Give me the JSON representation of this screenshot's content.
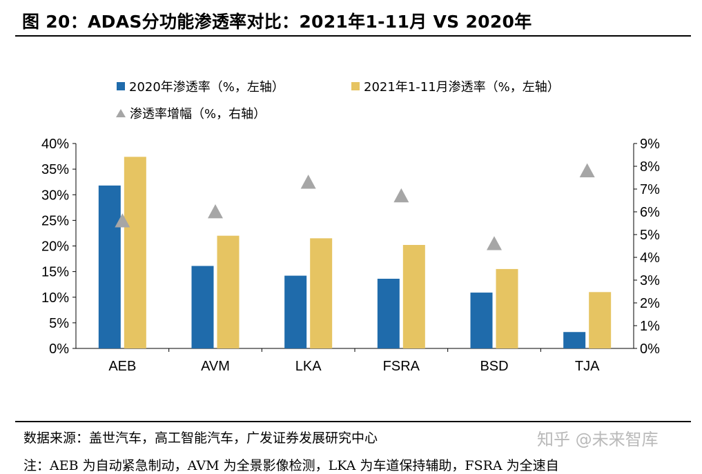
{
  "title": "图 20：ADAS分功能渗透率对比：2021年1-11月 VS 2020年",
  "colors": {
    "series_2020": "#1f6bab",
    "series_2021": "#e6c462",
    "increase": "#a6a6a6"
  },
  "legend": {
    "s2020": "2020年渗透率（%，左轴）",
    "s2021": "2021年1-11月渗透率（%，左轴）",
    "sinc": "渗透率增幅（%，右轴）",
    "marker_icons": [
      "square-swatch",
      "square-swatch",
      "triangle-marker"
    ]
  },
  "chart_data": {
    "type": "bar",
    "categories": [
      "AEB",
      "AVM",
      "LKA",
      "FSRA",
      "BSD",
      "TJA"
    ],
    "series": [
      {
        "name": "2020年渗透率（%，左轴）",
        "axis": "left",
        "kind": "bar",
        "values": [
          31.8,
          16.1,
          14.2,
          13.6,
          10.9,
          3.2
        ]
      },
      {
        "name": "2021年1-11月渗透率（%，左轴）",
        "axis": "left",
        "kind": "bar",
        "values": [
          37.4,
          22.0,
          21.5,
          20.2,
          15.5,
          11.0
        ]
      },
      {
        "name": "渗透率增幅（%，右轴）",
        "axis": "right",
        "kind": "scatter",
        "marker": "triangle",
        "values": [
          5.6,
          6.0,
          7.3,
          6.7,
          4.6,
          7.8
        ]
      }
    ],
    "ylim_left": [
      0,
      40
    ],
    "ylim_right": [
      0,
      9
    ],
    "yticks_left": [
      "0%",
      "5%",
      "10%",
      "15%",
      "20%",
      "25%",
      "30%",
      "35%",
      "40%"
    ],
    "yticks_right": [
      "0%",
      "1%",
      "2%",
      "3%",
      "4%",
      "5%",
      "6%",
      "7%",
      "8%",
      "9%"
    ],
    "grid": false,
    "legend_position": "top-left"
  },
  "source": "数据来源：盖世汽车，高工智能汽车，广发证券发展研究中心",
  "watermark": "知乎 @未来智库",
  "note": "注：AEB 为自动紧急制动，AVM 为全景影像检测，LKA 为车道保持辅助，FSRA 为全速自"
}
